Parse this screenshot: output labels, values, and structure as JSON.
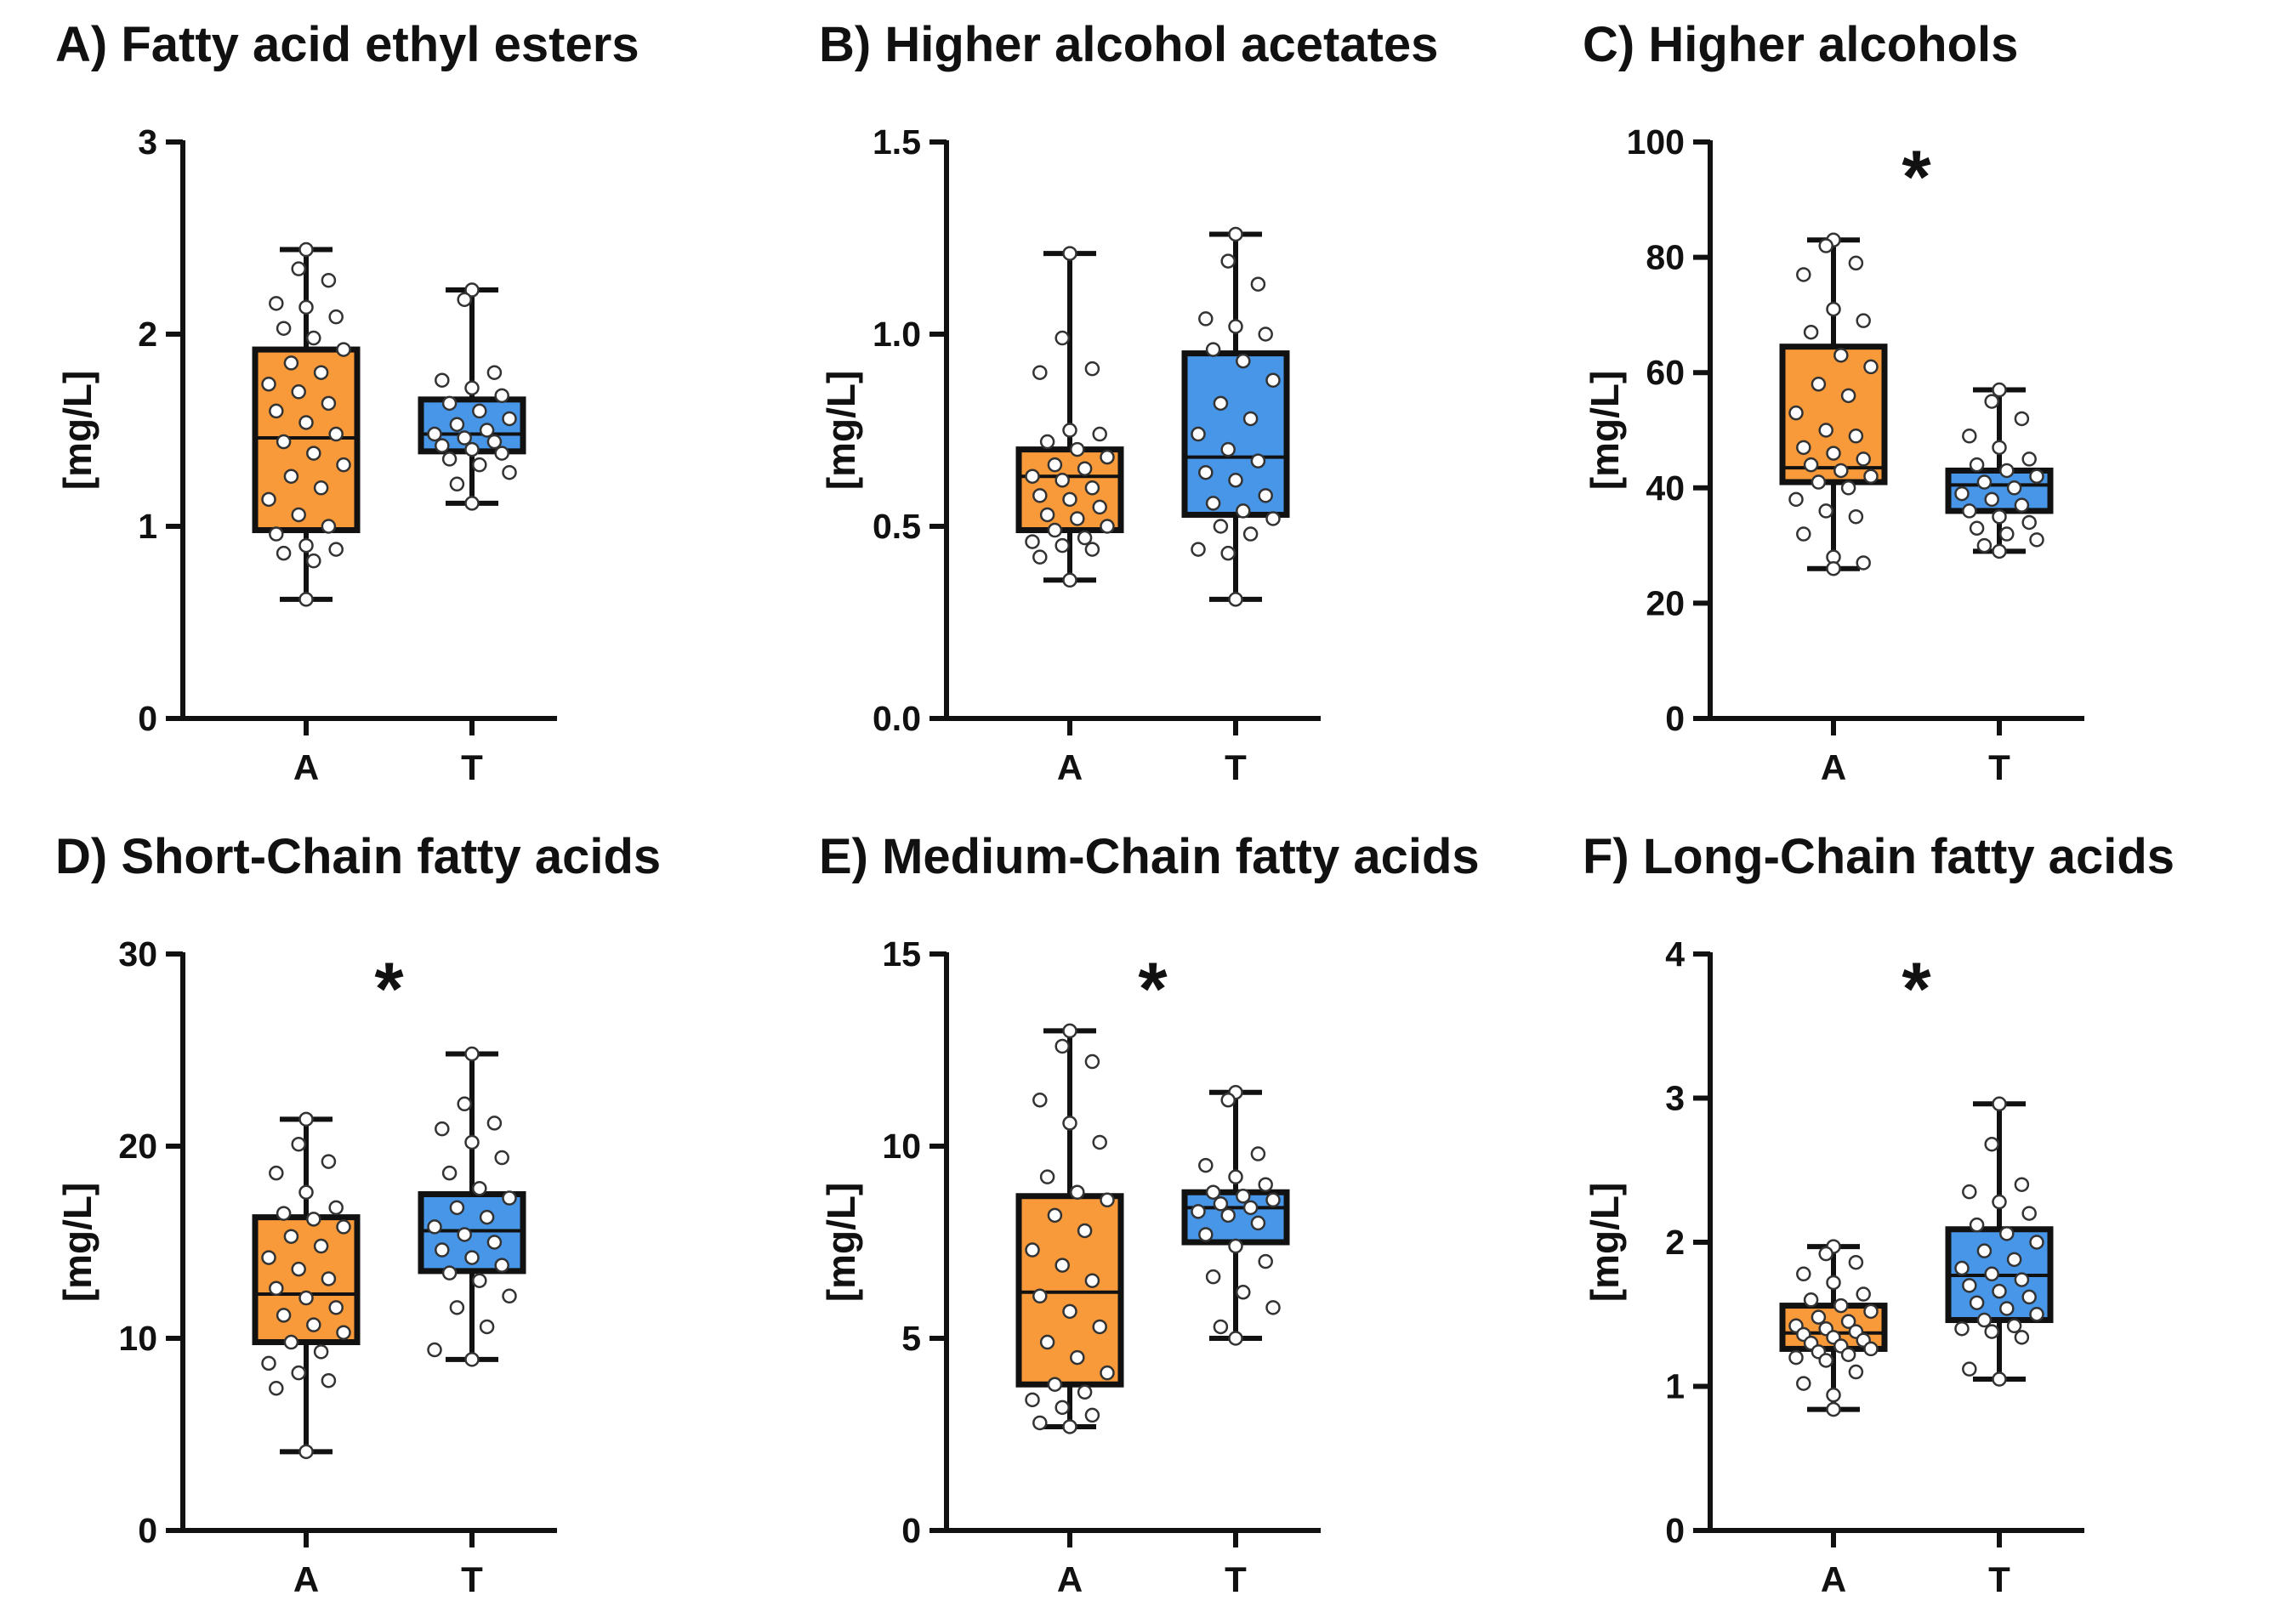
{
  "colors": {
    "A": "#f89a3a",
    "T": "#4796e8",
    "stroke": "#111111",
    "point_fill": "#ffffff"
  },
  "chart_data": [
    {
      "type": "box",
      "title": "A) Fatty acid ethyl esters",
      "ylabel": "[mg/L]",
      "ylim": [
        0,
        3
      ],
      "yticks": [
        0,
        1,
        2,
        3
      ],
      "ytick_labels": [
        "0",
        "1",
        "2",
        "3"
      ],
      "categories": [
        "A",
        "T"
      ],
      "significance": "",
      "boxes": [
        {
          "name": "A",
          "min": 0.62,
          "q1": 0.98,
          "median": 1.46,
          "q3": 1.92,
          "max": 2.44,
          "points": [
            2.44,
            2.34,
            2.28,
            2.16,
            2.14,
            2.09,
            2.03,
            1.98,
            1.92,
            1.85,
            1.8,
            1.74,
            1.7,
            1.64,
            1.6,
            1.54,
            1.48,
            1.44,
            1.38,
            1.32,
            1.26,
            1.2,
            1.14,
            1.06,
            1.0,
            0.96,
            0.9,
            0.88,
            0.86,
            0.82,
            0.62
          ]
        },
        {
          "name": "T",
          "min": 1.12,
          "q1": 1.39,
          "median": 1.48,
          "q3": 1.66,
          "max": 2.23,
          "points": [
            2.23,
            2.18,
            1.8,
            1.76,
            1.72,
            1.68,
            1.64,
            1.6,
            1.56,
            1.53,
            1.5,
            1.48,
            1.46,
            1.44,
            1.42,
            1.4,
            1.38,
            1.35,
            1.32,
            1.28,
            1.22,
            1.12
          ]
        }
      ]
    },
    {
      "type": "box",
      "title": "B) Higher alcohol acetates",
      "ylabel": "[mg/L]",
      "ylim": [
        0,
        1.5
      ],
      "yticks": [
        0,
        0.5,
        1.0,
        1.5
      ],
      "ytick_labels": [
        "0.0",
        "0.5",
        "1.0",
        "1.5"
      ],
      "categories": [
        "A",
        "T"
      ],
      "significance": "",
      "boxes": [
        {
          "name": "A",
          "min": 0.36,
          "q1": 0.49,
          "median": 0.63,
          "q3": 0.7,
          "max": 1.21,
          "points": [
            1.21,
            0.99,
            0.91,
            0.9,
            0.75,
            0.74,
            0.72,
            0.7,
            0.68,
            0.66,
            0.65,
            0.63,
            0.62,
            0.6,
            0.58,
            0.57,
            0.55,
            0.53,
            0.52,
            0.5,
            0.49,
            0.47,
            0.46,
            0.45,
            0.44,
            0.42,
            0.36
          ]
        },
        {
          "name": "T",
          "min": 0.31,
          "q1": 0.53,
          "median": 0.68,
          "q3": 0.95,
          "max": 1.26,
          "points": [
            1.26,
            1.19,
            1.13,
            1.04,
            1.02,
            1.0,
            0.96,
            0.93,
            0.88,
            0.82,
            0.78,
            0.74,
            0.7,
            0.67,
            0.64,
            0.62,
            0.58,
            0.56,
            0.54,
            0.52,
            0.5,
            0.48,
            0.44,
            0.43,
            0.31
          ]
        }
      ]
    },
    {
      "type": "box",
      "title": "C) Higher alcohols",
      "ylabel": "[mg/L]",
      "ylim": [
        0,
        100
      ],
      "yticks": [
        0,
        20,
        40,
        60,
        80,
        100
      ],
      "ytick_labels": [
        "0",
        "20",
        "40",
        "60",
        "80",
        "100"
      ],
      "categories": [
        "A",
        "T"
      ],
      "significance": "*",
      "boxes": [
        {
          "name": "A",
          "min": 26,
          "q1": 41,
          "median": 43.5,
          "q3": 64.5,
          "max": 83,
          "points": [
            83,
            82,
            79,
            77,
            71,
            69,
            67,
            63,
            61,
            58,
            56,
            53,
            50,
            49,
            47,
            46,
            45,
            44,
            43,
            42,
            41,
            40,
            38,
            36,
            35,
            32,
            28,
            27,
            26
          ]
        },
        {
          "name": "T",
          "min": 29,
          "q1": 36,
          "median": 40.5,
          "q3": 43,
          "max": 57,
          "points": [
            57,
            55,
            52,
            49,
            47,
            45,
            44,
            43,
            42,
            41,
            40,
            39,
            38,
            37,
            36,
            35,
            34,
            33,
            32,
            31,
            30,
            29
          ]
        }
      ]
    },
    {
      "type": "box",
      "title": "D) Short-Chain fatty acids",
      "ylabel": "[mg/L]",
      "ylim": [
        0,
        30
      ],
      "yticks": [
        0,
        10,
        20,
        30
      ],
      "ytick_labels": [
        "0",
        "10",
        "20",
        "30"
      ],
      "categories": [
        "A",
        "T"
      ],
      "significance": "*",
      "boxes": [
        {
          "name": "A",
          "min": 4.1,
          "q1": 9.8,
          "median": 12.3,
          "q3": 16.3,
          "max": 21.4,
          "points": [
            21.4,
            20.1,
            19.2,
            18.6,
            17.6,
            16.8,
            16.5,
            16.2,
            15.8,
            15.3,
            14.8,
            14.2,
            13.6,
            13.1,
            12.6,
            12.1,
            11.6,
            11.2,
            10.7,
            10.3,
            9.8,
            9.3,
            8.7,
            8.2,
            7.8,
            7.4,
            4.1
          ]
        },
        {
          "name": "T",
          "min": 8.9,
          "q1": 13.5,
          "median": 15.6,
          "q3": 17.5,
          "max": 24.8,
          "points": [
            24.8,
            22.2,
            21.2,
            20.9,
            20.2,
            19.4,
            18.6,
            17.8,
            17.3,
            16.8,
            16.3,
            15.8,
            15.4,
            15.0,
            14.6,
            14.2,
            13.8,
            13.4,
            13.0,
            12.2,
            11.6,
            10.6,
            9.4,
            8.9
          ]
        }
      ]
    },
    {
      "type": "box",
      "title": "E) Medium-Chain fatty acids",
      "ylabel": "[mg/L]",
      "ylim": [
        0,
        15
      ],
      "yticks": [
        0,
        5,
        10,
        15
      ],
      "ytick_labels": [
        "0",
        "5",
        "10",
        "15"
      ],
      "categories": [
        "A",
        "T"
      ],
      "significance": "*",
      "boxes": [
        {
          "name": "A",
          "min": 2.7,
          "q1": 3.8,
          "median": 6.2,
          "q3": 8.7,
          "max": 13.0,
          "points": [
            13.0,
            12.6,
            12.2,
            11.2,
            10.6,
            10.1,
            9.2,
            8.8,
            8.6,
            8.2,
            7.8,
            7.3,
            6.9,
            6.5,
            6.1,
            5.7,
            5.3,
            4.9,
            4.5,
            4.1,
            3.8,
            3.6,
            3.4,
            3.2,
            3.0,
            2.8,
            2.7
          ]
        },
        {
          "name": "T",
          "min": 5.0,
          "q1": 7.5,
          "median": 8.4,
          "q3": 8.8,
          "max": 11.4,
          "points": [
            11.4,
            11.2,
            9.8,
            9.5,
            9.2,
            9.0,
            8.8,
            8.7,
            8.6,
            8.5,
            8.4,
            8.3,
            8.2,
            8.0,
            7.7,
            7.4,
            7.0,
            6.6,
            6.2,
            5.8,
            5.3,
            5.0
          ]
        }
      ]
    },
    {
      "type": "box",
      "title": "F) Long-Chain fatty acids",
      "ylabel": "[mg/L]",
      "ylim": [
        0,
        4
      ],
      "yticks": [
        0,
        1,
        2,
        3,
        4
      ],
      "ytick_labels": [
        "0",
        "1",
        "2",
        "3",
        "4"
      ],
      "categories": [
        "A",
        "T"
      ],
      "significance": "*",
      "boxes": [
        {
          "name": "A",
          "min": 0.84,
          "q1": 1.26,
          "median": 1.37,
          "q3": 1.56,
          "max": 1.97,
          "points": [
            1.97,
            1.92,
            1.86,
            1.78,
            1.72,
            1.64,
            1.6,
            1.56,
            1.52,
            1.48,
            1.45,
            1.42,
            1.4,
            1.38,
            1.36,
            1.34,
            1.32,
            1.3,
            1.28,
            1.26,
            1.24,
            1.22,
            1.2,
            1.18,
            1.1,
            1.02,
            0.94,
            0.84
          ]
        },
        {
          "name": "T",
          "min": 1.05,
          "q1": 1.46,
          "median": 1.77,
          "q3": 2.09,
          "max": 2.96,
          "points": [
            2.96,
            2.68,
            2.4,
            2.35,
            2.28,
            2.2,
            2.12,
            2.06,
            2.0,
            1.94,
            1.88,
            1.82,
            1.78,
            1.74,
            1.7,
            1.66,
            1.62,
            1.58,
            1.54,
            1.5,
            1.46,
            1.42,
            1.4,
            1.38,
            1.34,
            1.12,
            1.05
          ]
        }
      ]
    }
  ]
}
